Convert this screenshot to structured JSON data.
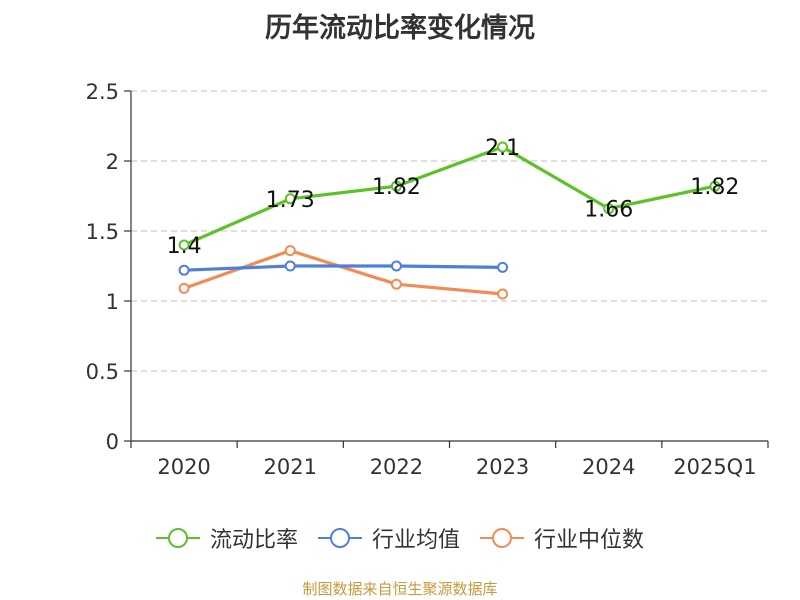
{
  "chart_data": {
    "type": "line",
    "title": "历年流动比率变化情况",
    "categories": [
      "2020",
      "2021",
      "2022",
      "2023",
      "2024",
      "2025Q1"
    ],
    "ylim": [
      0,
      2.5
    ],
    "yticks": [
      "0",
      "0.5",
      "1",
      "1.5",
      "2",
      "2.5"
    ],
    "xlabel": "",
    "ylabel": "",
    "grid": true,
    "legend_position": "bottom",
    "series": [
      {
        "name": "流动比率",
        "color": "#5dc22a",
        "values": [
          1.4,
          1.73,
          1.82,
          2.1,
          1.66,
          1.82
        ],
        "labels": [
          "1.4",
          "1.73",
          "1.82",
          "2.1",
          "1.66",
          "1.82"
        ]
      },
      {
        "name": "行业均值",
        "color": "#4f7fdc",
        "values": [
          1.22,
          1.25,
          1.25,
          1.24,
          null,
          null
        ]
      },
      {
        "name": "行业中位数",
        "color": "#f28c55",
        "values": [
          1.09,
          1.36,
          1.12,
          1.05,
          null,
          null
        ]
      }
    ]
  },
  "source_note": "制图数据来自恒生聚源数据库"
}
